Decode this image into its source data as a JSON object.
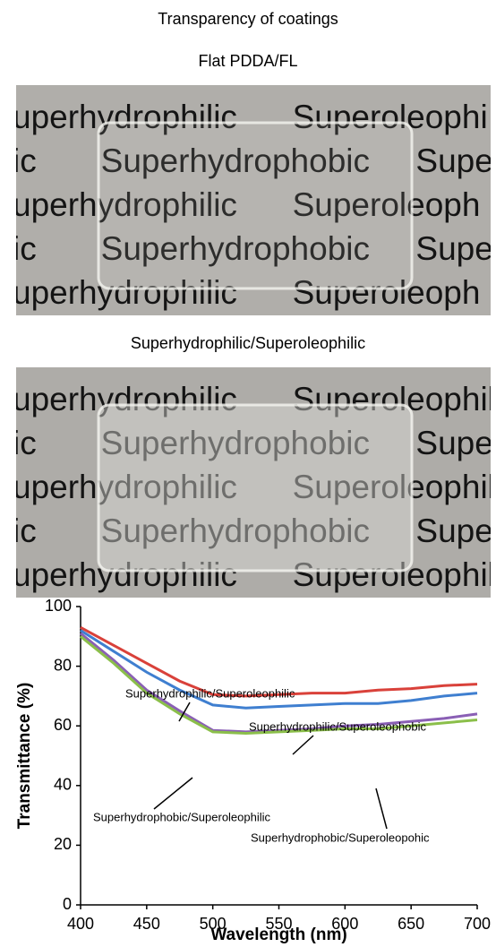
{
  "header": {
    "title": "Transparency of coatings"
  },
  "photos": [
    {
      "caption": "Flat PDDA/FL",
      "lines": [
        "uperhydrophilic      Superoleophi",
        "ic       Superhydrophobic     Supe",
        "uperhydrophilic      Superoleoph",
        "ic       Superhydrophobic     Supe",
        "uperhydrophilic      Superoleoph"
      ]
    },
    {
      "caption": "Superhydrophilic/Superoleophilic",
      "lines": [
        "uperhydrophilic      Superoleophil",
        "ic       Superhydrophobic     Super",
        "uperhydrophilic      Superoleophili",
        "ic       Superhydrophobic     Super",
        "uperhydrophilic      Superoleophili"
      ]
    }
  ],
  "chart_data": {
    "type": "line",
    "x_label": "Wavelength (nm)",
    "y_label": "Transmittance (%)",
    "x": [
      400,
      425,
      450,
      475,
      500,
      525,
      550,
      575,
      600,
      625,
      650,
      675,
      700
    ],
    "series": [
      {
        "name": "Superhydrophilic/Superoleophilic",
        "color": "#d9413a",
        "values": [
          93,
          87,
          81,
          75,
          70.5,
          70,
          70.5,
          71,
          71,
          72,
          72.5,
          73.5,
          74
        ]
      },
      {
        "name": "Superhydrophilic/Superoleophobic",
        "color": "#3f7fd0",
        "values": [
          92,
          85,
          78,
          72,
          67,
          66,
          66.5,
          67,
          67.5,
          67.5,
          68.5,
          70,
          71
        ]
      },
      {
        "name": "Superhydrophobic/Superoleophilic",
        "color": "#8a5fb5",
        "values": [
          91,
          82,
          72,
          65,
          58.5,
          58,
          58.5,
          59,
          60,
          60.5,
          61.5,
          62.5,
          64
        ]
      },
      {
        "name": "Superhydrophobic/Superoleopohic",
        "color": "#8bbf4a",
        "values": [
          90,
          81,
          71,
          64,
          58,
          57.5,
          58,
          58.5,
          59,
          59,
          60,
          61,
          62
        ]
      }
    ],
    "xlim": [
      400,
      700
    ],
    "ylim": [
      0,
      100
    ],
    "xticks": [
      400,
      450,
      500,
      550,
      600,
      650,
      700
    ],
    "yticks": [
      0,
      20,
      40,
      60,
      80,
      100
    ],
    "grid": false
  }
}
